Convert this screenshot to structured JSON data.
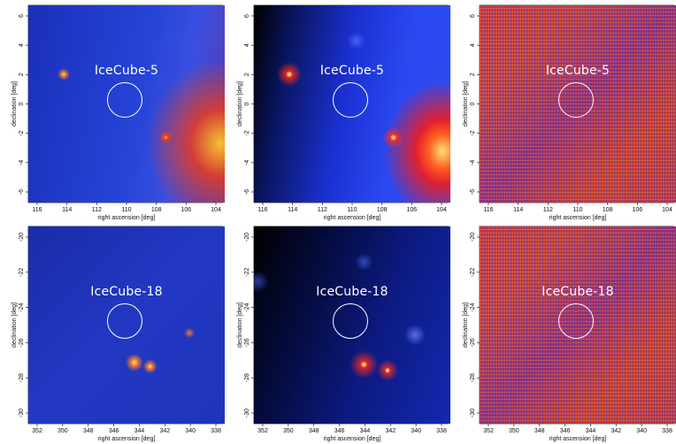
{
  "figure": {
    "rows": [
      {
        "source": "IceCube-5",
        "x_ticks": [
          "116",
          "114",
          "112",
          "110",
          "108",
          "106",
          "104"
        ],
        "y_ticks": [
          "6",
          "4",
          "2",
          "0",
          "-2",
          "-4",
          "-6"
        ],
        "xlabel": "right ascension [deg]",
        "ylabel": "declination [deg]",
        "panels": [
          {
            "type": "counts map"
          },
          {
            "type": "model map"
          },
          {
            "type": "residual map"
          }
        ]
      },
      {
        "source": "IceCube-18",
        "x_ticks": [
          "352",
          "350",
          "348",
          "346",
          "344",
          "342",
          "340",
          "338"
        ],
        "y_ticks": [
          "-20",
          "-22",
          "-24",
          "-26",
          "-28",
          "-30"
        ],
        "xlabel": "right ascension [deg]",
        "ylabel": "declination [deg]",
        "panels": [
          {
            "type": "counts map"
          },
          {
            "type": "model map"
          },
          {
            "type": "residual map"
          }
        ]
      }
    ]
  }
}
